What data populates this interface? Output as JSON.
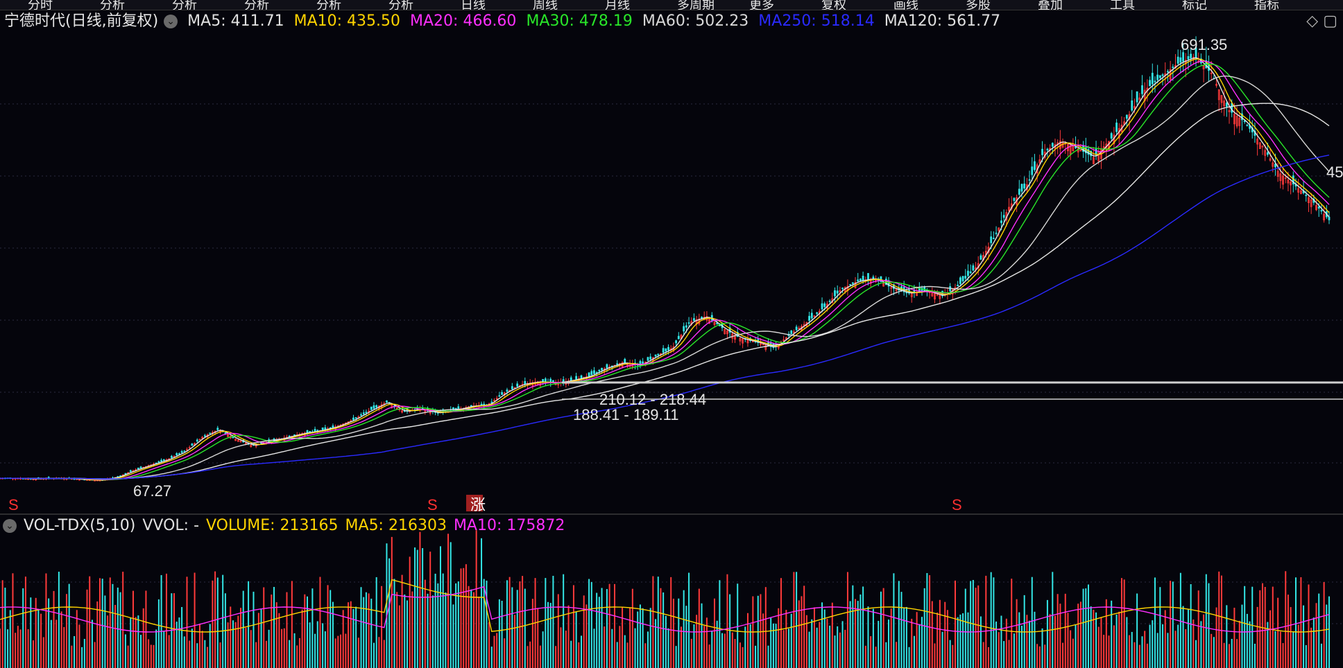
{
  "top_menu": [
    "分时",
    "分析",
    "分析",
    "分析",
    "分析",
    "分析",
    "日线",
    "周线",
    "月线",
    "多周期",
    "更多",
    "复权",
    "画线",
    "多股",
    "叠加",
    "工具",
    "标记",
    "指标"
  ],
  "main_panel": {
    "title": "宁德时代(日线,前复权)",
    "indicators": [
      {
        "label": "MA5: 411.71",
        "color": "#e0e0e0"
      },
      {
        "label": "MA10: 435.50",
        "color": "#ffd400"
      },
      {
        "label": "MA20: 466.60",
        "color": "#ff30ff"
      },
      {
        "label": "MA30: 478.19",
        "color": "#29e629"
      },
      {
        "label": "MA60: 502.23",
        "color": "#d8d8d8"
      },
      {
        "label": "MA250: 518.14",
        "color": "#2a2aff"
      },
      {
        "label": "MA120: 561.77",
        "color": "#e0e0e0"
      }
    ],
    "annotations": {
      "high_label": "691.35",
      "low_label": "67.27",
      "range_1": "210.12 - 218.44",
      "range_2": "188.41 - 189.11",
      "right_edge_label": "45"
    },
    "markers": [
      "S",
      "S",
      "涨",
      "S"
    ],
    "right_icons": "◇ ▢"
  },
  "volume_panel": {
    "title": "VOL-TDX(5,10)",
    "indicators": [
      {
        "label": "VVOL: -",
        "color": "#e0e0e0"
      },
      {
        "label": "VOLUME: 213165",
        "color": "#ffd400"
      },
      {
        "label": "MA5: 216303",
        "color": "#ffd400"
      },
      {
        "label": "MA10: 175872",
        "color": "#ff30ff"
      }
    ]
  },
  "chart_data": {
    "type": "line",
    "description_series": "approximate close prices, daily, front-adjusted",
    "x": [
      "1",
      "2",
      "3",
      "4",
      "5",
      "6",
      "7",
      "8",
      "9",
      "10",
      "11",
      "12",
      "13",
      "14",
      "15",
      "16",
      "17",
      "18",
      "19",
      "20",
      "21",
      "22",
      "23",
      "24",
      "25",
      "26",
      "27",
      "28",
      "29",
      "30",
      "31",
      "32",
      "33",
      "34",
      "35",
      "36",
      "37",
      "38",
      "39",
      "40",
      "41",
      "42",
      "43",
      "44",
      "45",
      "46",
      "47",
      "48",
      "49",
      "50",
      "51",
      "52",
      "53",
      "54",
      "55",
      "56",
      "57",
      "58",
      "59",
      "60",
      "61",
      "62",
      "63",
      "64",
      "65",
      "66",
      "67",
      "68",
      "69",
      "70",
      "71",
      "72",
      "73",
      "74",
      "75",
      "76",
      "77",
      "78",
      "79",
      "80"
    ],
    "series": [
      {
        "name": "close",
        "values": [
          70,
          70,
          69,
          70,
          70,
          68,
          67,
          72,
          82,
          90,
          98,
          110,
          130,
          142,
          128,
          118,
          124,
          130,
          136,
          140,
          146,
          156,
          170,
          182,
          168,
          172,
          166,
          170,
          176,
          178,
          196,
          208,
          212,
          210,
          214,
          220,
          232,
          240,
          236,
          250,
          262,
          300,
          308,
          290,
          276,
          270,
          262,
          282,
          300,
          322,
          348,
          360,
          364,
          350,
          342,
          346,
          338,
          354,
          380,
          420,
          470,
          500,
          548,
          566,
          556,
          542,
          568,
          600,
          640,
          660,
          680,
          690,
          666,
          612,
          594,
          560,
          520,
          500,
          478,
          450
        ]
      }
    ],
    "ma_levels_last": {
      "MA5": 411.71,
      "MA10": 435.5,
      "MA20": 466.6,
      "MA30": 478.19,
      "MA60": 502.23,
      "MA120": 561.77,
      "MA250": 518.14
    },
    "volume_last": {
      "VOLUME": 213165,
      "MA5": 216303,
      "MA10": 175872
    },
    "ylim": [
      60,
      700
    ]
  }
}
